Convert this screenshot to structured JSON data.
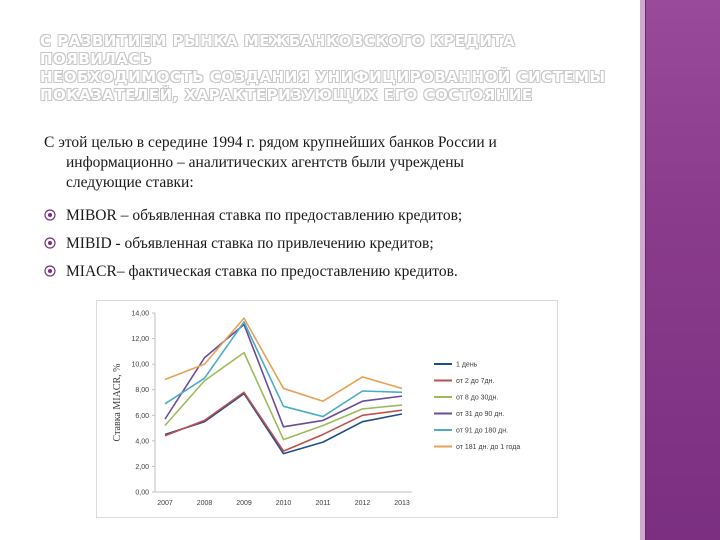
{
  "title": {
    "line1": "С РАЗВИТИЕМ РЫНКА МЕЖБАНКОВСКОГО КРЕДИТА ПОЯВИЛАСЬ",
    "line2": "НЕОБХОДИМОСТЬ СОЗДАНИЯ УНИФИЦИРОВАННОЙ СИСТЕМЫ",
    "line3": "ПОКАЗАТЕЛЕЙ, ХАРАКТЕРИЗУЮЩИХ ЕГО СОСТОЯНИЕ"
  },
  "intro": {
    "line1": "С этой целью в середине 1994 г. рядом крупнейших банков России и",
    "line2": "информационно – аналитических агентств были учреждены",
    "line3": "следующие ставки:"
  },
  "bullets": [
    "MIBOR – объявленная ставка по предоставлению кредитов;",
    "MIBID - объявленная ставка по привлечению кредитов;",
    "MIACR– фактическая ставка по предоставлению кредитов."
  ],
  "icons": {
    "bullet": "circled-bullet-icon"
  },
  "colors": {
    "accent": "#8a3b8c",
    "bullet": "#7b2f80"
  },
  "chart_data": {
    "type": "line",
    "x": [
      "2007",
      "2008",
      "2009",
      "2010",
      "2011",
      "2012",
      "2013"
    ],
    "ylabel": "Ставка MIACR, %",
    "ylim": [
      0,
      14
    ],
    "yticks": [
      "0,00",
      "2,00",
      "4,00",
      "6,00",
      "8,00",
      "10,00",
      "12,00",
      "14,00"
    ],
    "grid": false,
    "legend_position": "right",
    "series": [
      {
        "name": "1 день",
        "color": "#1f4e8c",
        "values": [
          4.5,
          5.5,
          7.7,
          3.0,
          3.9,
          5.5,
          6.1
        ]
      },
      {
        "name": "от 2 до 7дн.",
        "color": "#c0504d",
        "values": [
          4.4,
          5.6,
          7.8,
          3.2,
          4.5,
          6.0,
          6.4
        ]
      },
      {
        "name": "от 8 до 30дн.",
        "color": "#9bbb59",
        "values": [
          5.2,
          8.7,
          10.9,
          4.1,
          5.2,
          6.5,
          6.8
        ]
      },
      {
        "name": "от 31 до 90 дн.",
        "color": "#6b4c9a",
        "values": [
          5.7,
          10.5,
          13.1,
          5.1,
          5.6,
          7.1,
          7.5
        ]
      },
      {
        "name": "от 91 до 180 дн.",
        "color": "#4bacc6",
        "values": [
          6.9,
          8.9,
          13.3,
          6.7,
          5.9,
          7.9,
          7.8
        ]
      },
      {
        "name": "от 181 дн. до 1 года",
        "color": "#e8a254",
        "values": [
          8.8,
          10.0,
          13.6,
          8.1,
          7.1,
          9.0,
          8.1
        ]
      }
    ]
  }
}
